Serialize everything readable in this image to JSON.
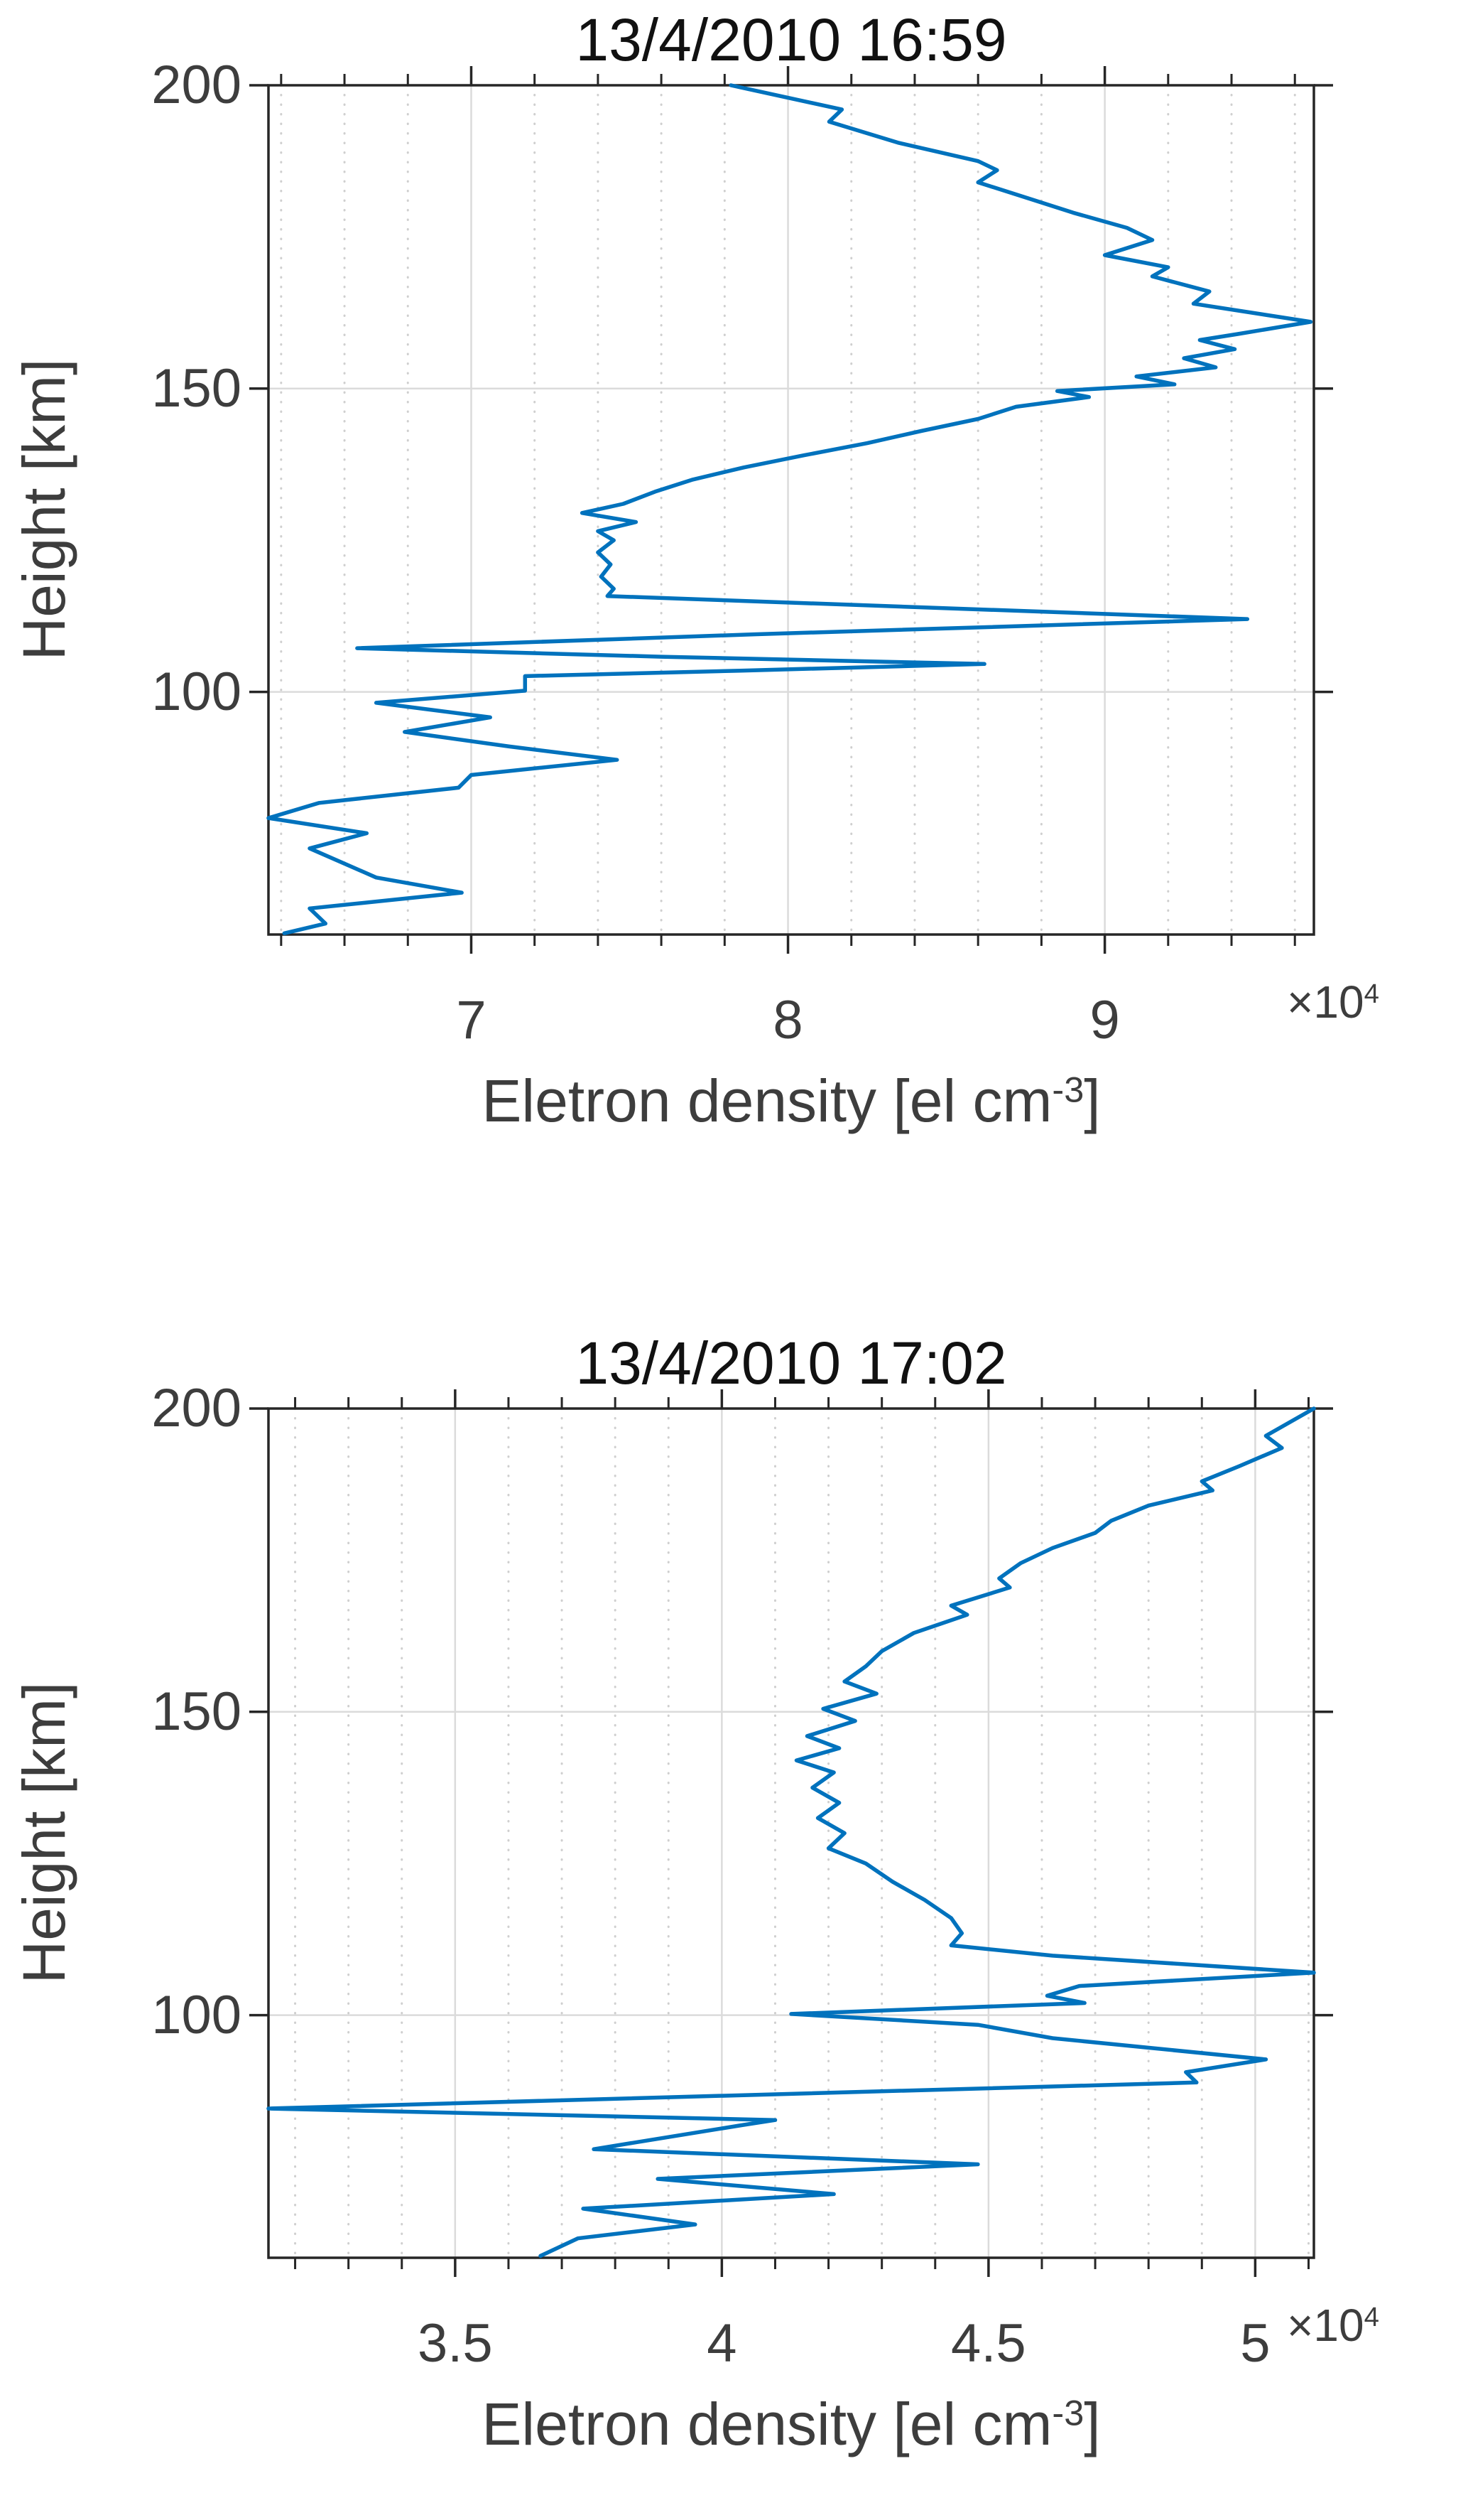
{
  "figure": {
    "background": "#ffffff",
    "line_color": "#0072BD",
    "axis_color": "#262626",
    "grid_color": "#dbdbdb",
    "minor_grid_color": "#cfcfcf",
    "text_color": "#3d3d3d",
    "title_color": "#111111"
  },
  "chart_data": [
    {
      "type": "line",
      "title": "13/4/2010 16:59",
      "ylabel": "Height [km]",
      "xlabel_pre": "Eletron density [el cm",
      "xlabel_sup": "-3",
      "xlabel_post": "]",
      "scale_pre": "×10",
      "scale_sup": "4",
      "x_unit_multiplier": 10000,
      "xlim": [
        6.36,
        9.66
      ],
      "ylim": [
        60,
        200
      ],
      "xticks": [
        7,
        8,
        9
      ],
      "xtick_labels": [
        "7",
        "8",
        "9"
      ],
      "xminor": [
        6.4,
        6.6,
        6.8,
        7.2,
        7.4,
        7.6,
        7.8,
        8.2,
        8.4,
        8.6,
        8.8,
        9.2,
        9.4,
        9.6
      ],
      "yticks": [
        100,
        150,
        200
      ],
      "ytick_labels": [
        "100",
        "150",
        "200"
      ],
      "grid": "on",
      "minor_grid": "x-dotted",
      "legend_position": "none",
      "series": [
        {
          "name": "electron-density-profile-16-59",
          "points": [
            [
              7.82,
              200
            ],
            [
              8.17,
              196
            ],
            [
              8.13,
              194
            ],
            [
              8.35,
              190.5
            ],
            [
              8.6,
              187.5
            ],
            [
              8.66,
              186
            ],
            [
              8.6,
              184
            ],
            [
              8.75,
              181.5
            ],
            [
              8.9,
              179
            ],
            [
              9.07,
              176.5
            ],
            [
              9.15,
              174.5
            ],
            [
              9.0,
              172
            ],
            [
              9.2,
              170
            ],
            [
              9.15,
              168.5
            ],
            [
              9.33,
              166
            ],
            [
              9.28,
              164
            ],
            [
              9.65,
              161
            ],
            [
              9.42,
              159
            ],
            [
              9.3,
              158
            ],
            [
              9.41,
              156.5
            ],
            [
              9.25,
              155
            ],
            [
              9.35,
              153.5
            ],
            [
              9.1,
              152
            ],
            [
              9.22,
              150.7
            ],
            [
              8.85,
              149.6
            ],
            [
              8.95,
              148.6
            ],
            [
              8.72,
              147
            ],
            [
              8.6,
              145
            ],
            [
              8.42,
              143
            ],
            [
              8.25,
              141
            ],
            [
              8.05,
              139
            ],
            [
              7.86,
              137
            ],
            [
              7.7,
              135
            ],
            [
              7.58,
              133
            ],
            [
              7.48,
              131
            ],
            [
              7.35,
              129.5
            ],
            [
              7.52,
              128
            ],
            [
              7.4,
              126.5
            ],
            [
              7.45,
              125
            ],
            [
              7.4,
              123
            ],
            [
              7.44,
              121
            ],
            [
              7.41,
              119
            ],
            [
              7.45,
              117
            ],
            [
              7.43,
              115.8
            ],
            [
              9.45,
              112
            ],
            [
              7.9,
              109.5
            ],
            [
              6.64,
              107.2
            ],
            [
              7.6,
              105.8
            ],
            [
              8.62,
              104.6
            ],
            [
              7.85,
              103.5
            ],
            [
              7.17,
              102.6
            ],
            [
              7.17,
              100.2
            ],
            [
              6.7,
              98.2
            ],
            [
              7.06,
              95.8
            ],
            [
              6.79,
              93.4
            ],
            [
              7.12,
              91
            ],
            [
              7.46,
              88.8
            ],
            [
              7.0,
              86.3
            ],
            [
              6.96,
              84.2
            ],
            [
              6.52,
              81.7
            ],
            [
              6.36,
              79.2
            ],
            [
              6.67,
              76.7
            ],
            [
              6.49,
              74.2
            ],
            [
              6.7,
              69.4
            ],
            [
              6.97,
              66.9
            ],
            [
              6.49,
              64.3
            ],
            [
              6.54,
              61.8
            ],
            [
              6.41,
              60.2
            ]
          ]
        }
      ]
    },
    {
      "type": "line",
      "title": "13/4/2010 17:02",
      "ylabel": "Height [km]",
      "xlabel_pre": "Eletron density [el cm",
      "xlabel_sup": "-3",
      "xlabel_post": "]",
      "scale_pre": "×10",
      "scale_sup": "4",
      "x_unit_multiplier": 10000,
      "xlim": [
        3.15,
        5.11
      ],
      "ylim": [
        60,
        200
      ],
      "xticks": [
        3.5,
        4,
        4.5,
        5
      ],
      "xtick_labels": [
        "3.5",
        "4",
        "4.5",
        "5"
      ],
      "xminor": [
        3.2,
        3.3,
        3.4,
        3.6,
        3.7,
        3.8,
        3.9,
        4.1,
        4.2,
        4.3,
        4.4,
        4.6,
        4.7,
        4.8,
        4.9,
        5.1
      ],
      "yticks": [
        100,
        150,
        200
      ],
      "ytick_labels": [
        "100",
        "150",
        "200"
      ],
      "grid": "on",
      "minor_grid": "x-dotted",
      "legend_position": "none",
      "series": [
        {
          "name": "electron-density-profile-17-02",
          "points": [
            [
              5.11,
              200
            ],
            [
              5.02,
              195.5
            ],
            [
              5.05,
              193.5
            ],
            [
              4.97,
              190.5
            ],
            [
              4.9,
              188
            ],
            [
              4.92,
              186.5
            ],
            [
              4.8,
              184
            ],
            [
              4.73,
              181.5
            ],
            [
              4.7,
              179.5
            ],
            [
              4.62,
              177
            ],
            [
              4.56,
              174.5
            ],
            [
              4.52,
              172
            ],
            [
              4.54,
              170.5
            ],
            [
              4.43,
              167.5
            ],
            [
              4.46,
              166
            ],
            [
              4.36,
              163
            ],
            [
              4.3,
              160
            ],
            [
              4.27,
              157.5
            ],
            [
              4.23,
              155
            ],
            [
              4.29,
              153
            ],
            [
              4.19,
              150.5
            ],
            [
              4.25,
              148.5
            ],
            [
              4.16,
              146
            ],
            [
              4.22,
              144
            ],
            [
              4.14,
              142
            ],
            [
              4.21,
              140
            ],
            [
              4.17,
              137.5
            ],
            [
              4.22,
              135
            ],
            [
              4.18,
              132.5
            ],
            [
              4.23,
              130
            ],
            [
              4.2,
              127.5
            ],
            [
              4.27,
              125
            ],
            [
              4.32,
              122
            ],
            [
              4.38,
              119
            ],
            [
              4.43,
              116
            ],
            [
              4.45,
              113.5
            ],
            [
              4.43,
              111.5
            ],
            [
              4.62,
              109.8
            ],
            [
              5.11,
              107
            ],
            [
              4.67,
              104.8
            ],
            [
              4.61,
              103.2
            ],
            [
              4.68,
              102
            ],
            [
              4.13,
              100.2
            ],
            [
              4.48,
              98.4
            ],
            [
              4.62,
              96.2
            ],
            [
              5.02,
              92.7
            ],
            [
              4.87,
              90.6
            ],
            [
              4.89,
              88.9
            ],
            [
              3.15,
              84.6
            ],
            [
              4.1,
              82.7
            ],
            [
              4.04,
              81.9
            ],
            [
              3.76,
              77.9
            ],
            [
              4.48,
              75.4
            ],
            [
              3.88,
              73
            ],
            [
              4.21,
              70.5
            ],
            [
              3.74,
              68.1
            ],
            [
              3.95,
              65.5
            ],
            [
              3.73,
              63.2
            ],
            [
              3.66,
              60.3
            ]
          ]
        }
      ]
    }
  ]
}
